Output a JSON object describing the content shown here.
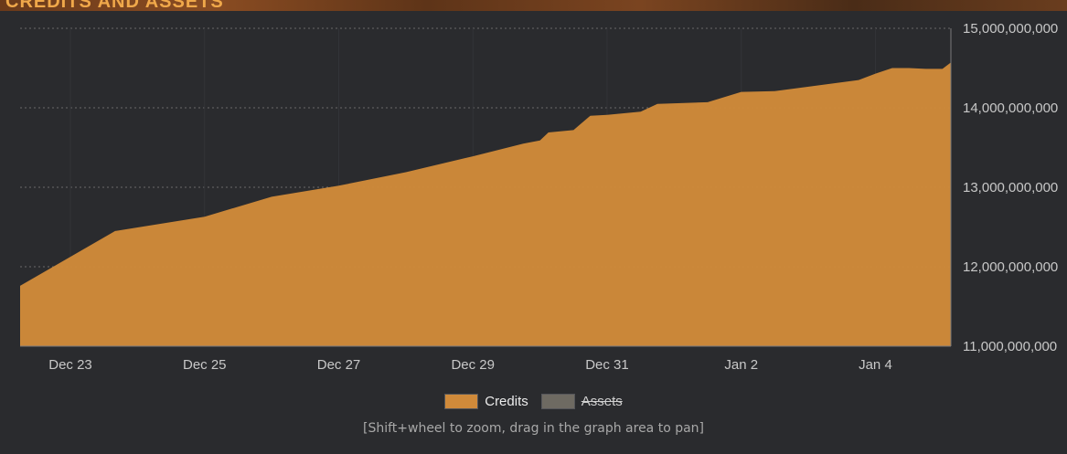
{
  "header": {
    "title": "CREDITS AND ASSETS"
  },
  "hint": "[Shift+wheel to zoom, drag in the graph area to pan]",
  "colors": {
    "credits": "#d08a3a",
    "assets": "#6e6a62",
    "background": "#2a2b2e",
    "grid": "#6a6a6a"
  },
  "chart_data": {
    "type": "area",
    "title": "CREDITS AND ASSETS",
    "x_type": "date",
    "xlim": [
      "2022-12-22 06:00",
      "2023-01-05 03:00"
    ],
    "x_ticks": [
      "Dec 23",
      "Dec 25",
      "Dec 27",
      "Dec 29",
      "Dec 31",
      "Jan 2",
      "Jan 4"
    ],
    "y_ticks": [
      "15,000,000,000",
      "14,000,000,000",
      "13,000,000,000",
      "12,000,000,000",
      "11,000,000,000"
    ],
    "ylim": [
      11000000000,
      15000000000
    ],
    "y_axis_side": "right",
    "grid": true,
    "legend_position": "bottom",
    "series": [
      {
        "name": "Credits",
        "color": "#d08a3a",
        "visible": true,
        "x": [
          "2022-12-22 06:00",
          "2022-12-23 16:00",
          "2022-12-25 00:00",
          "2022-12-26 00:00",
          "2022-12-27 00:00",
          "2022-12-28 00:00",
          "2022-12-29 00:00",
          "2022-12-29 18:00",
          "2022-12-30 00:00",
          "2022-12-30 03:00",
          "2022-12-30 12:00",
          "2022-12-30 18:00",
          "2022-12-31 00:00",
          "2022-12-31 12:00",
          "2022-12-31 18:00",
          "2023-01-01 12:00",
          "2023-01-02 00:00",
          "2023-01-02 12:00",
          "2023-01-03 18:00",
          "2023-01-04 00:00",
          "2023-01-04 06:00",
          "2023-01-04 12:00",
          "2023-01-04 18:00",
          "2023-01-05 00:00",
          "2023-01-05 03:00"
        ],
        "values": [
          11760000000,
          12450000000,
          12630000000,
          12880000000,
          13020000000,
          13190000000,
          13390000000,
          13550000000,
          13590000000,
          13690000000,
          13720000000,
          13900000000,
          13910000000,
          13950000000,
          14050000000,
          14070000000,
          14200000000,
          14210000000,
          14350000000,
          14430000000,
          14500000000,
          14500000000,
          14490000000,
          14490000000,
          14570000000
        ]
      },
      {
        "name": "Assets",
        "color": "#6e6a62",
        "visible": false,
        "x": [],
        "values": []
      }
    ]
  }
}
